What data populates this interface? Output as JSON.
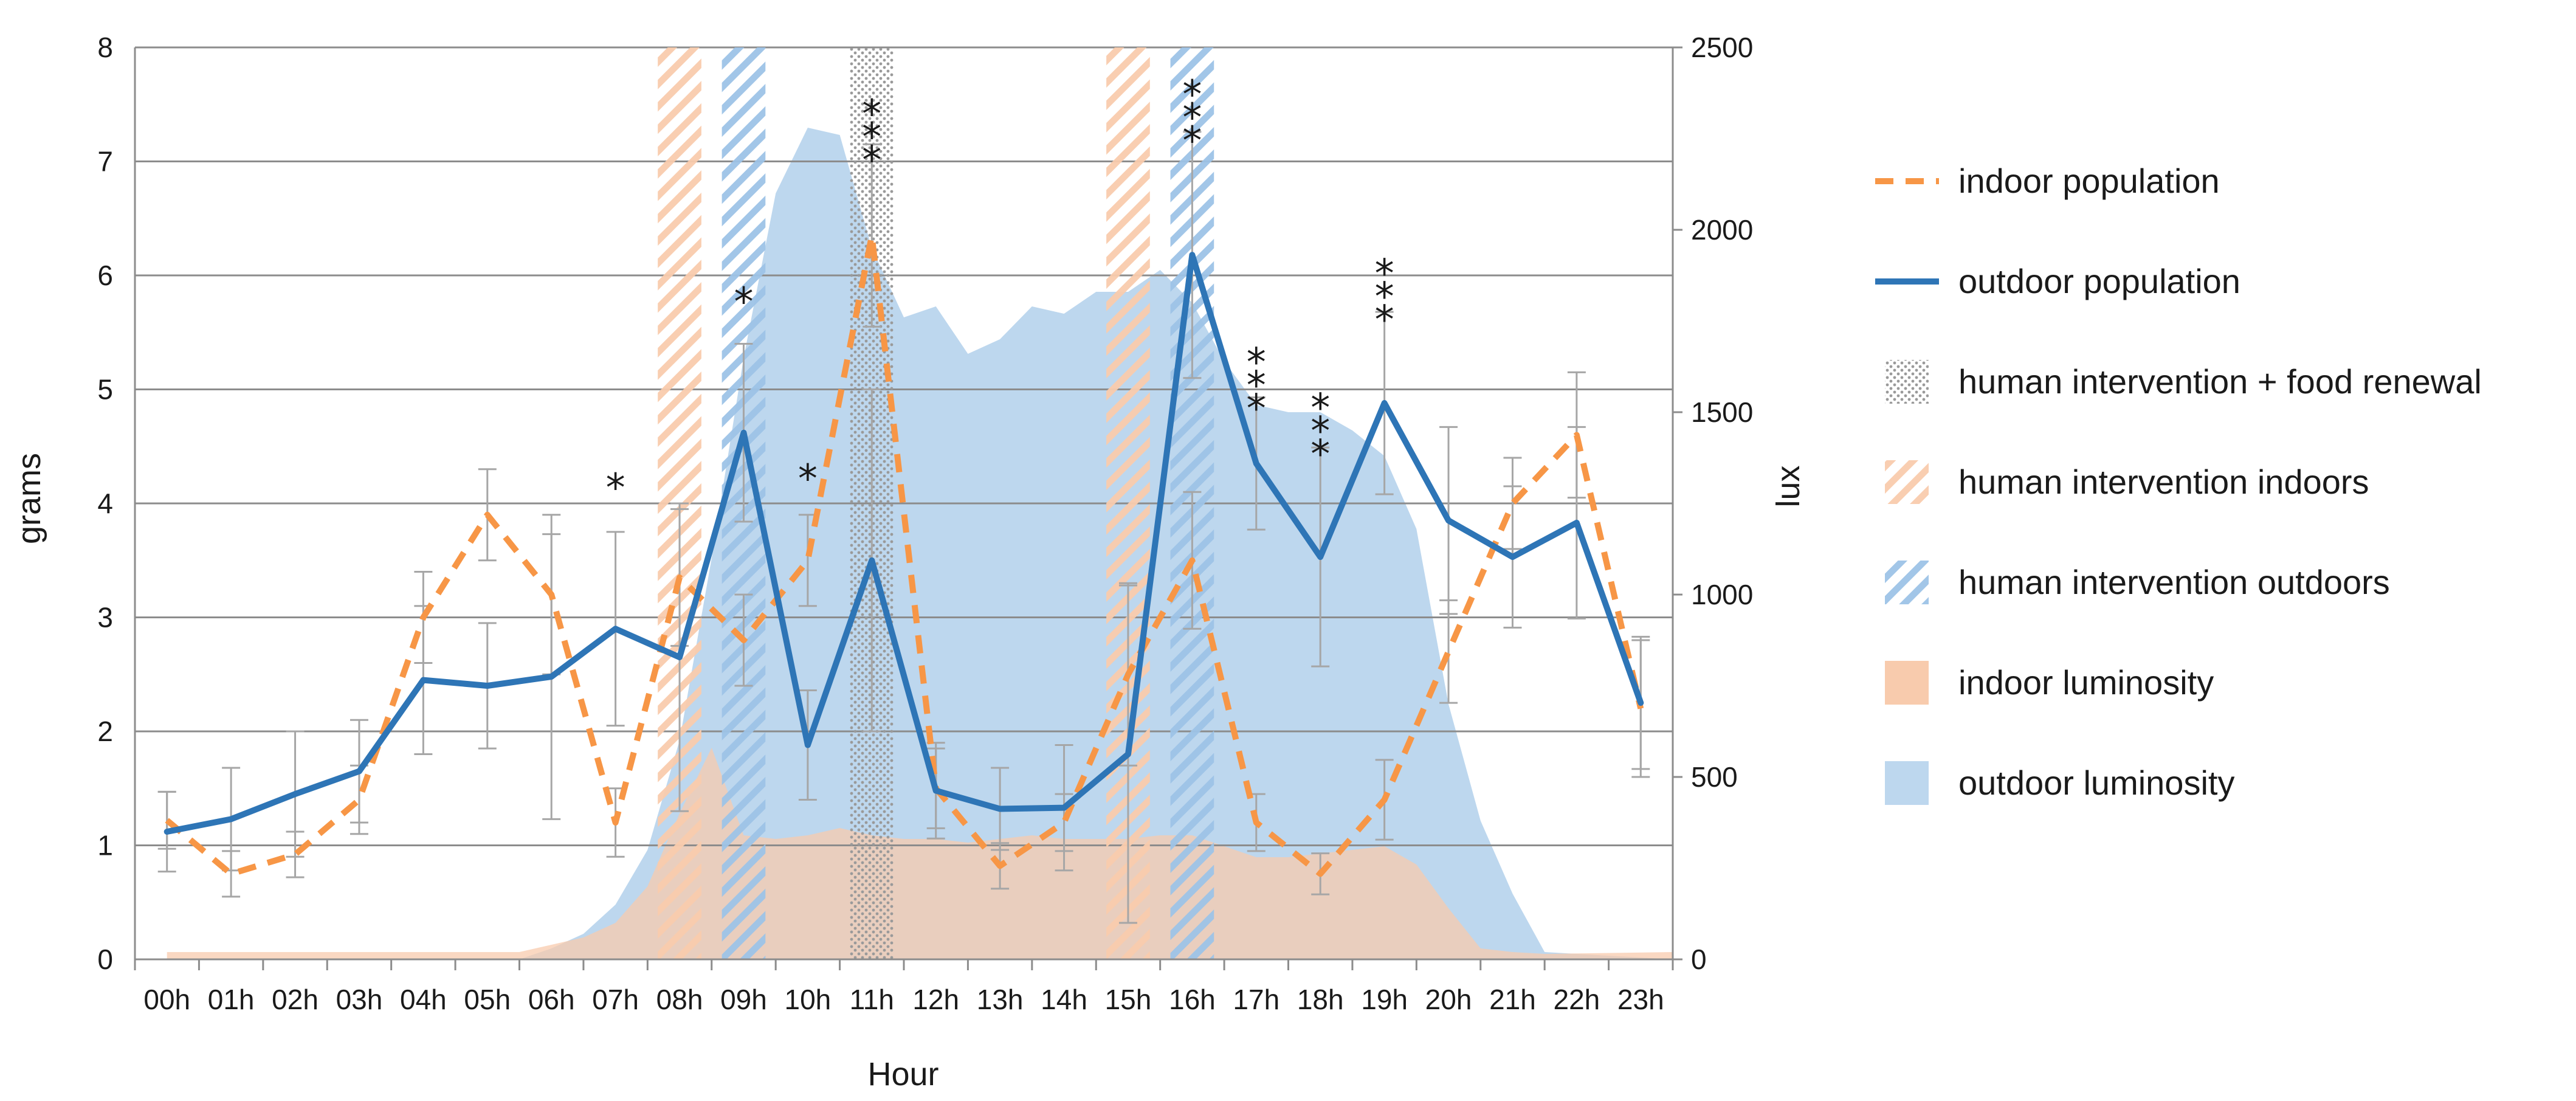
{
  "chart_data": {
    "type": "line",
    "xlabel": "Hour",
    "ylabel": "grams",
    "y2label": "lux",
    "categories": [
      "00h",
      "01h",
      "02h",
      "03h",
      "04h",
      "05h",
      "06h",
      "07h",
      "08h",
      "09h",
      "10h",
      "11h",
      "12h",
      "13h",
      "14h",
      "15h",
      "16h",
      "17h",
      "18h",
      "19h",
      "20h",
      "21h",
      "22h",
      "23h"
    ],
    "ylim": [
      0,
      8
    ],
    "y_ticks": [
      "0",
      "1",
      "2",
      "3",
      "4",
      "5",
      "6",
      "7",
      "8"
    ],
    "y2lim": [
      0,
      2500
    ],
    "y2_ticks": [
      "0",
      "500",
      "1000",
      "1500",
      "2000",
      "2500"
    ],
    "grid": true,
    "legend_position": "right",
    "series": [
      {
        "name": "indoor population",
        "style": "dashed",
        "color": "#F79646",
        "values": [
          1.22,
          0.75,
          0.92,
          1.4,
          3.0,
          3.9,
          3.2,
          1.2,
          3.35,
          2.8,
          3.5,
          6.35,
          1.5,
          0.82,
          1.2,
          2.5,
          3.5,
          1.2,
          0.75,
          1.4,
          2.7,
          4.0,
          4.6,
          2.2
        ],
        "error": [
          0.25,
          0.2,
          0.2,
          0.3,
          0.4,
          0.4,
          0.7,
          0.3,
          0.6,
          0.4,
          0.4,
          0.8,
          0.35,
          0.2,
          0.25,
          0.8,
          0.6,
          0.25,
          0.18,
          0.35,
          0.45,
          0.4,
          0.55,
          0.6
        ]
      },
      {
        "name": "outdoor population",
        "style": "solid",
        "color": "#2E75B6",
        "values": [
          1.12,
          1.23,
          1.45,
          1.65,
          2.45,
          2.4,
          2.48,
          2.9,
          2.65,
          4.62,
          1.88,
          3.5,
          1.48,
          1.32,
          1.33,
          1.8,
          6.18,
          4.35,
          3.53,
          4.88,
          3.85,
          3.53,
          3.83,
          2.25
        ],
        "error": [
          0.35,
          0.45,
          0.55,
          0.45,
          0.65,
          0.55,
          1.25,
          0.85,
          1.35,
          0.78,
          0.48,
          1.5,
          0.42,
          0.36,
          0.55,
          1.48,
          1.08,
          0.58,
          0.96,
          0.8,
          0.82,
          0.62,
          0.84,
          0.58
        ]
      }
    ],
    "area_series": [
      {
        "name": "outdoor luminosity",
        "axis": "lux",
        "color": "#BDD7EE",
        "x": [
          0,
          5.5,
          6,
          6.5,
          7,
          7.5,
          8,
          8.5,
          9,
          9.5,
          10,
          10.5,
          11,
          11.5,
          12,
          12.5,
          13,
          13.5,
          14,
          14.5,
          15,
          15.5,
          16,
          16.5,
          17,
          17.5,
          18,
          18.5,
          19,
          19.5,
          20,
          20.5,
          21,
          21.5,
          23.5
        ],
        "values": [
          0,
          0,
          30,
          70,
          150,
          300,
          600,
          1100,
          1650,
          2100,
          2280,
          2260,
          1950,
          1760,
          1790,
          1660,
          1700,
          1790,
          1770,
          1830,
          1830,
          1890,
          1800,
          1640,
          1520,
          1500,
          1500,
          1450,
          1380,
          1180,
          700,
          380,
          180,
          20,
          0
        ]
      },
      {
        "name": "indoor luminosity",
        "axis": "lux",
        "color": "#F8CBAD",
        "x": [
          0,
          5.5,
          6,
          6.5,
          7,
          7.5,
          8,
          8.5,
          9,
          9.5,
          10,
          10.5,
          11,
          11.5,
          12,
          12.5,
          13,
          13.5,
          14,
          14.5,
          15,
          15.5,
          16,
          16.5,
          17,
          17.5,
          18,
          18.5,
          19,
          19.5,
          20,
          20.5,
          21,
          21.5,
          23.5
        ],
        "values": [
          20,
          20,
          40,
          60,
          100,
          200,
          400,
          580,
          340,
          330,
          340,
          360,
          340,
          330,
          330,
          320,
          330,
          340,
          330,
          330,
          330,
          340,
          340,
          310,
          280,
          280,
          290,
          300,
          310,
          260,
          140,
          30,
          20,
          15,
          20
        ]
      }
    ],
    "bands": [
      {
        "name": "human intervention indoors",
        "pattern": "hatch-orange",
        "hour": 8
      },
      {
        "name": "human intervention outdoors",
        "pattern": "hatch-blue",
        "hour": 9
      },
      {
        "name": "human intervention + food renewal",
        "pattern": "dots",
        "hour": 11
      },
      {
        "name": "human intervention indoors",
        "pattern": "hatch-orange",
        "hour": 15
      },
      {
        "name": "human intervention outdoors",
        "pattern": "hatch-blue",
        "hour": 16
      }
    ],
    "annotations": [
      {
        "text": "*",
        "hour": 7,
        "value": 4.02
      },
      {
        "text": "*",
        "hour": 9,
        "value": 5.65
      },
      {
        "text": "*",
        "hour": 10,
        "value": 4.1
      },
      {
        "text": "***",
        "hour": 11,
        "value": 7.3
      },
      {
        "text": "***",
        "hour": 16,
        "value": 7.47
      },
      {
        "text": "***",
        "hour": 17,
        "value": 5.12
      },
      {
        "text": "***",
        "hour": 18,
        "value": 4.72
      },
      {
        "text": "***",
        "hour": 19,
        "value": 5.9
      }
    ],
    "legend": [
      {
        "label": "indoor population",
        "swatch": "dashed-orange"
      },
      {
        "label": "outdoor population",
        "swatch": "solid-blue"
      },
      {
        "label": "human intervention + food renewal",
        "swatch": "dots"
      },
      {
        "label": "human intervention indoors",
        "swatch": "hatch-orange"
      },
      {
        "label": "human intervention outdoors",
        "swatch": "hatch-blue"
      },
      {
        "label": "indoor luminosity",
        "swatch": "fill-orange"
      },
      {
        "label": "outdoor luminosity",
        "swatch": "fill-blue"
      }
    ]
  }
}
